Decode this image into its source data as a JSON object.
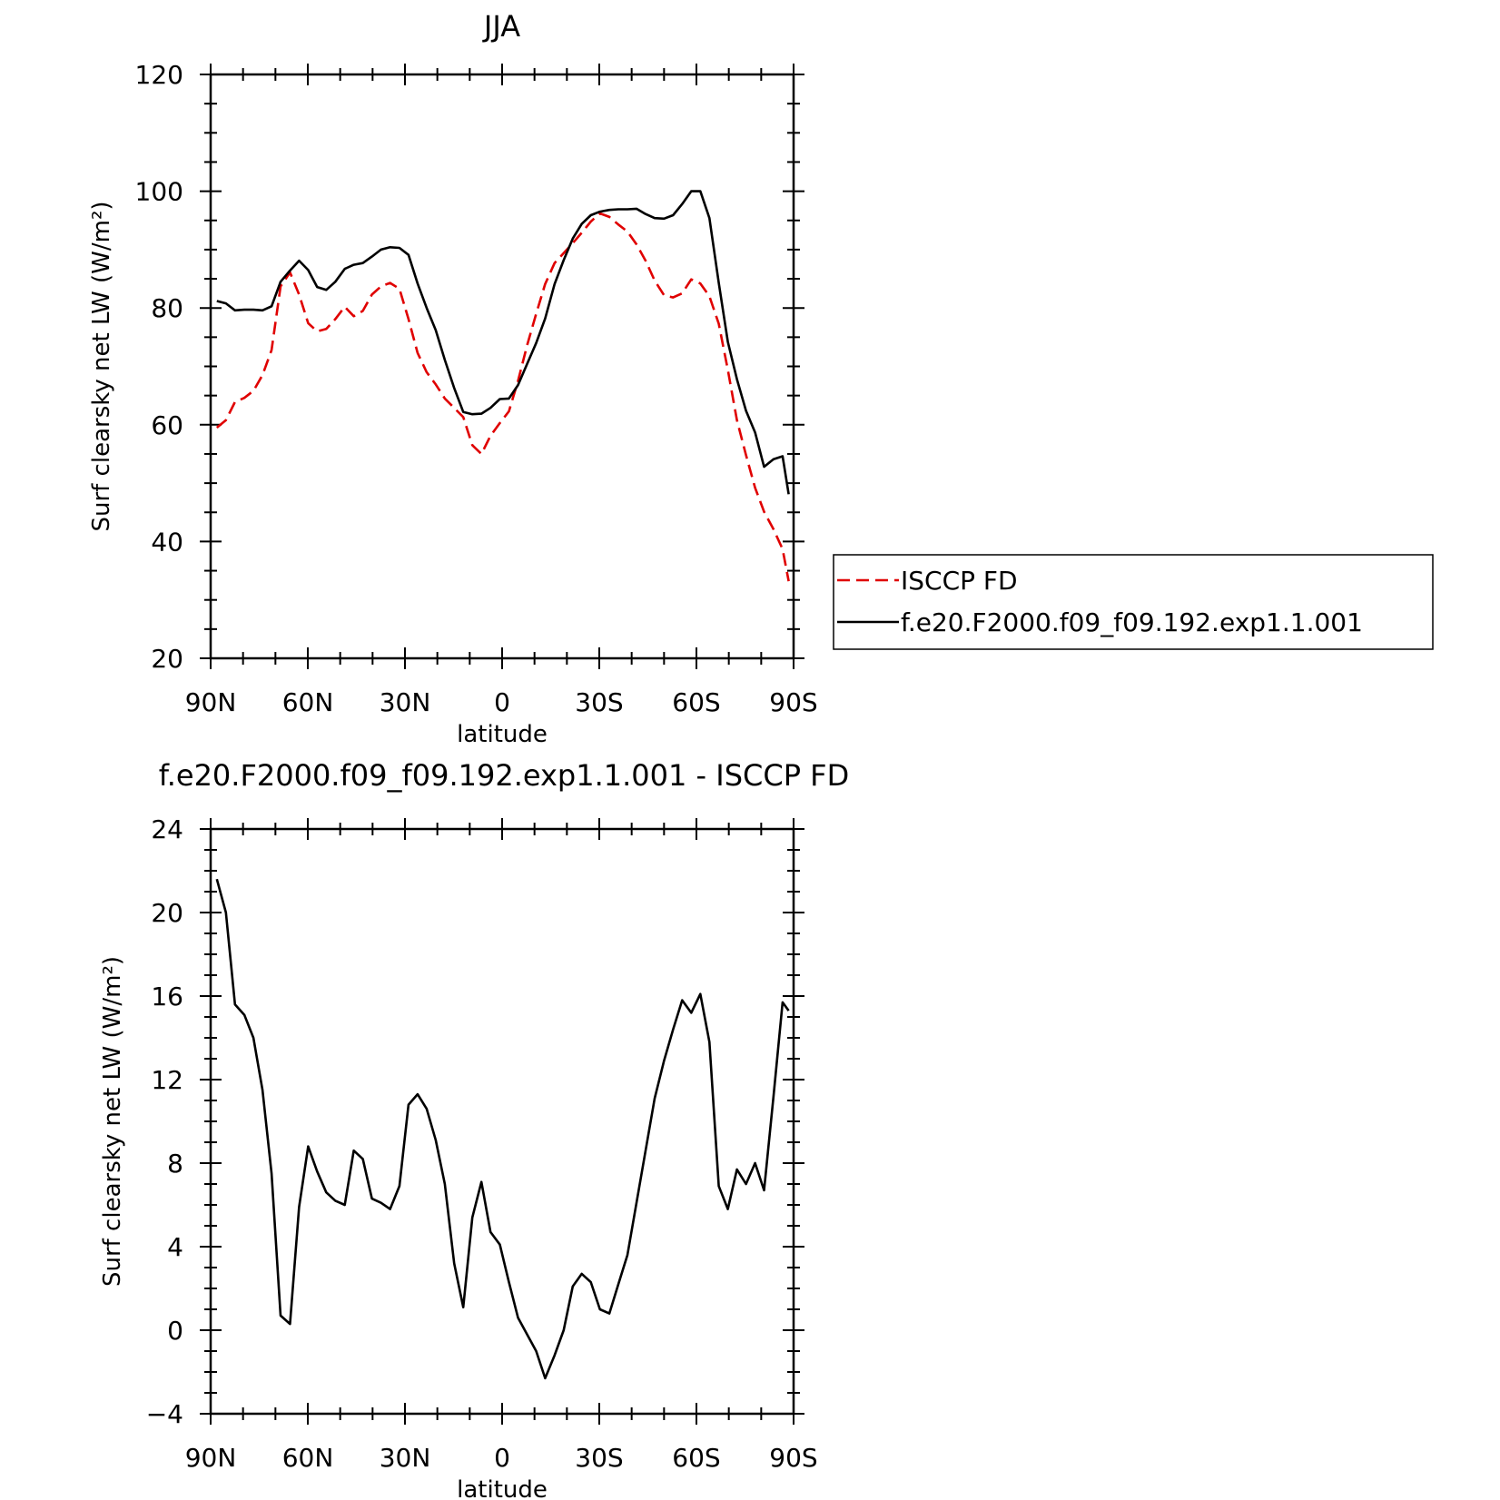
{
  "chart_data": [
    {
      "type": "line",
      "title": "JJA",
      "xlabel": "latitude",
      "ylabel": "Surf clearsky net LW (W/m²)",
      "xlim": [
        90,
        -90
      ],
      "ylim": [
        20,
        120
      ],
      "xticks": [
        90,
        60,
        30,
        0,
        -30,
        -60,
        -90
      ],
      "xtick_labels": [
        "90N",
        "60N",
        "30N",
        "0",
        "30S",
        "60S",
        "90S"
      ],
      "yticks": [
        20,
        40,
        60,
        80,
        100,
        120
      ],
      "ytick_labels": [
        "20",
        "40",
        "60",
        "80",
        "100",
        "120"
      ],
      "legend_position": "right",
      "x": [
        88.1,
        85.3,
        82.5,
        79.6,
        76.8,
        74.0,
        71.2,
        68.4,
        65.5,
        62.7,
        59.9,
        57.1,
        54.3,
        51.5,
        48.6,
        45.8,
        43.0,
        40.2,
        37.4,
        34.6,
        31.7,
        28.9,
        26.1,
        23.3,
        20.5,
        17.7,
        14.8,
        12.0,
        9.2,
        6.4,
        3.6,
        0.7,
        -2.1,
        -4.9,
        -7.7,
        -10.5,
        -13.3,
        -16.2,
        -19.0,
        -21.8,
        -24.6,
        -27.4,
        -30.2,
        -33.1,
        -35.9,
        -38.7,
        -41.5,
        -44.3,
        -47.1,
        -50.0,
        -52.8,
        -55.6,
        -58.4,
        -61.2,
        -64.0,
        -66.9,
        -69.7,
        -72.5,
        -75.3,
        -78.1,
        -80.9,
        -83.8,
        -86.6,
        -88.5
      ],
      "series": [
        {
          "name": "ISCCP FD",
          "color": "#e00000",
          "dash": true,
          "values": [
            59.5,
            60.8,
            63.9,
            64.6,
            65.8,
            68.5,
            72.8,
            83.7,
            86.1,
            82.3,
            77.4,
            76.0,
            76.4,
            78.1,
            80.2,
            78.6,
            79.5,
            82.3,
            83.7,
            84.3,
            83.3,
            78.1,
            72.3,
            69.0,
            66.9,
            64.5,
            62.9,
            61.3,
            56.5,
            55.0,
            58.1,
            60.3,
            62.3,
            67.5,
            73.6,
            79.0,
            84.1,
            87.7,
            89.4,
            91.1,
            92.9,
            94.8,
            96.2,
            95.6,
            94.3,
            93.1,
            90.9,
            88.1,
            84.7,
            82.2,
            81.8,
            82.5,
            84.9,
            84.2,
            82.0,
            77.3,
            69.4,
            60.8,
            54.8,
            49.2,
            45.1,
            42.1,
            38.7,
            33.2
          ]
        },
        {
          "name": "f.e20.F2000.f09_f09.192.exp1.1.001",
          "color": "#000000",
          "dash": false,
          "values": [
            81.2,
            80.8,
            79.6,
            79.7,
            79.7,
            79.6,
            80.3,
            84.5,
            86.4,
            88.1,
            86.5,
            83.6,
            83.1,
            84.5,
            86.7,
            87.4,
            87.7,
            88.8,
            90.0,
            90.4,
            90.3,
            89.1,
            84.2,
            80.0,
            76.2,
            71.1,
            66.3,
            62.2,
            61.8,
            61.9,
            62.9,
            64.4,
            64.5,
            66.8,
            70.4,
            74.0,
            78.2,
            84.1,
            88.2,
            91.9,
            94.4,
            95.9,
            96.5,
            96.8,
            96.9,
            96.9,
            97.0,
            96.1,
            95.4,
            95.3,
            95.9,
            97.8,
            100.0,
            100.0,
            95.4,
            84.3,
            74.2,
            67.8,
            62.4,
            58.7,
            52.8,
            54.1,
            54.6,
            48.1
          ]
        }
      ]
    },
    {
      "type": "line",
      "title": "f.e20.F2000.f09_f09.192.exp1.1.001 - ISCCP FD",
      "xlabel": "latitude",
      "ylabel": "Surf clearsky net LW (W/m²)",
      "xlim": [
        90,
        -90
      ],
      "ylim": [
        -4,
        24
      ],
      "xticks": [
        90,
        60,
        30,
        0,
        -30,
        -60,
        -90
      ],
      "xtick_labels": [
        "90N",
        "60N",
        "30N",
        "0",
        "30S",
        "60S",
        "90S"
      ],
      "yticks": [
        -4,
        0,
        4,
        8,
        12,
        16,
        20,
        24
      ],
      "ytick_labels": [
        "−4",
        "0",
        "4",
        "8",
        "12",
        "16",
        "20",
        "24"
      ],
      "x": [
        88.1,
        85.3,
        82.5,
        79.6,
        76.8,
        74.0,
        71.2,
        68.4,
        65.5,
        62.7,
        59.9,
        57.1,
        54.3,
        51.5,
        48.6,
        45.8,
        43.0,
        40.2,
        37.4,
        34.6,
        31.7,
        28.9,
        26.1,
        23.3,
        20.5,
        17.7,
        14.8,
        12.0,
        9.2,
        6.4,
        3.6,
        0.7,
        -2.1,
        -4.9,
        -7.7,
        -10.5,
        -13.3,
        -16.2,
        -19.0,
        -21.8,
        -24.6,
        -27.4,
        -30.2,
        -33.1,
        -35.9,
        -38.7,
        -41.5,
        -44.3,
        -47.1,
        -50.0,
        -52.8,
        -55.6,
        -58.4,
        -61.2,
        -64.0,
        -66.9,
        -69.7,
        -72.5,
        -75.3,
        -78.1,
        -80.9,
        -83.8,
        -86.6,
        -88.5
      ],
      "series": [
        {
          "color": "#000000",
          "dash": false,
          "values": [
            21.6,
            20.0,
            15.6,
            15.1,
            14.0,
            11.5,
            7.5,
            0.7,
            0.3,
            5.9,
            8.8,
            7.6,
            6.6,
            6.2,
            6.0,
            8.6,
            8.2,
            6.3,
            6.1,
            5.8,
            6.9,
            10.8,
            11.3,
            10.6,
            9.1,
            7.0,
            3.2,
            1.1,
            5.4,
            7.1,
            4.7,
            4.1,
            2.3,
            0.6,
            -0.2,
            -1.0,
            -2.3,
            -1.2,
            0.0,
            2.1,
            2.7,
            2.3,
            1.0,
            0.8,
            2.2,
            3.6,
            6.1,
            8.6,
            11.1,
            12.9,
            14.4,
            15.8,
            15.2,
            16.1,
            13.8,
            6.9,
            5.8,
            7.7,
            7.0,
            8.0,
            6.7,
            11.2,
            15.7,
            15.3
          ]
        }
      ]
    }
  ]
}
